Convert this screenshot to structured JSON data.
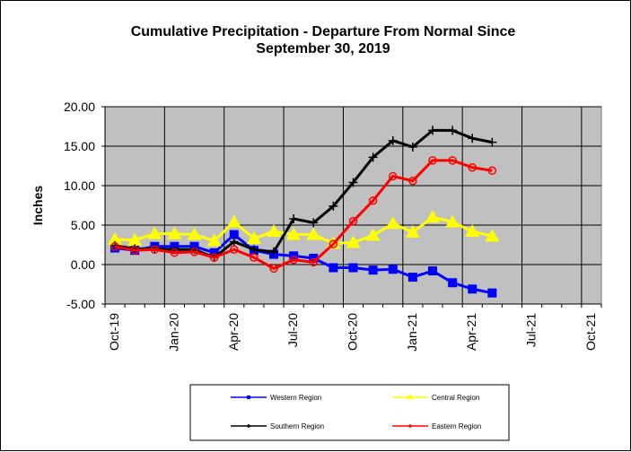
{
  "chart_data": {
    "type": "line",
    "title": [
      "Cumulative Precipitation - Departure From Normal Since",
      "September 30, 2019"
    ],
    "ylabel": "Inches",
    "xlabel": "",
    "ylim": [
      -5,
      20
    ],
    "yticks": [
      "20.00",
      "15.00",
      "10.00",
      "5.00",
      "0.00",
      "-5.00"
    ],
    "xticks": [
      "Oct-19",
      "Jan-20",
      "Apr-20",
      "Jul-20",
      "Oct-20",
      "Jan-21",
      "Apr-21",
      "Jul-21",
      "Oct-21"
    ],
    "grid": true,
    "legend_position": "bottom",
    "x": [
      "Oct-19",
      "Nov-19",
      "Dec-19",
      "Jan-20",
      "Feb-20",
      "Mar-20",
      "Apr-20",
      "May-20",
      "Jun-20",
      "Jul-20",
      "Aug-20",
      "Sep-20",
      "Oct-20",
      "Nov-20",
      "Dec-20",
      "Jan-21",
      "Feb-21",
      "Mar-21",
      "Apr-21",
      "May-21"
    ],
    "series": [
      {
        "name": "Western Region",
        "color": "#0000FF",
        "marker": "square",
        "values": [
          2.1,
          1.8,
          2.3,
          2.3,
          2.3,
          1.5,
          3.8,
          1.8,
          1.3,
          1.1,
          0.8,
          -0.4,
          -0.4,
          -0.7,
          -0.6,
          -1.6,
          -0.8,
          -2.3,
          -3.1,
          -3.6
        ]
      },
      {
        "name": "Central Region",
        "color": "#FFFF00",
        "marker": "triangle",
        "values": [
          3.2,
          3.1,
          3.9,
          3.9,
          3.8,
          3.0,
          5.4,
          3.3,
          4.2,
          3.8,
          3.8,
          2.7,
          2.8,
          3.7,
          5.2,
          4.1,
          6.0,
          5.4,
          4.2,
          3.6
        ]
      },
      {
        "name": "Southern Region",
        "color": "#000000",
        "marker": "plus",
        "values": [
          2.4,
          2.0,
          2.0,
          1.9,
          1.9,
          0.9,
          2.9,
          1.9,
          1.6,
          5.8,
          5.3,
          7.4,
          10.4,
          13.6,
          15.7,
          14.9,
          17.0,
          17.0,
          16.0,
          15.5
        ]
      },
      {
        "name": "Eastern Region",
        "color": "#FF0000",
        "marker": "circle",
        "values": [
          2.3,
          1.8,
          1.9,
          1.5,
          1.6,
          0.9,
          1.9,
          0.9,
          -0.5,
          0.6,
          0.3,
          2.6,
          5.5,
          8.1,
          11.2,
          10.6,
          13.2,
          13.2,
          12.3,
          11.9
        ]
      }
    ]
  }
}
